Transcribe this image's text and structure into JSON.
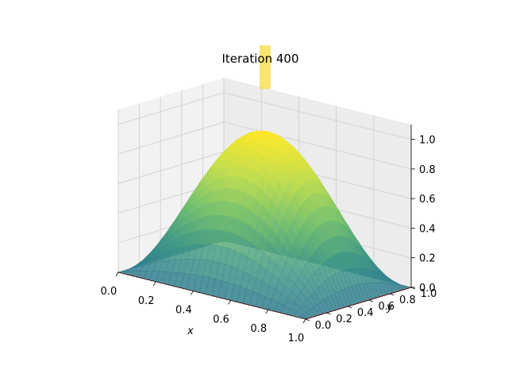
{
  "chart_data": {
    "type": "surface3d",
    "title": "Iteration 400",
    "xlabel": "x",
    "ylabel": "y",
    "zlabel": "",
    "xlim": [
      0,
      1
    ],
    "ylim": [
      0,
      1
    ],
    "zlim": [
      0,
      1.1
    ],
    "x_ticks": [
      0.0,
      0.2,
      0.4,
      0.6,
      0.8,
      1.0
    ],
    "x_tick_labels": [
      "0.0",
      "0.2",
      "0.4",
      "0.6",
      "0.8",
      "1.0"
    ],
    "y_ticks": [
      0.0,
      0.2,
      0.4,
      0.6,
      0.8,
      1.0
    ],
    "y_tick_labels": [
      "0.0",
      "0.2",
      "0.4",
      "0.6",
      "0.8",
      "1.0"
    ],
    "z_ticks": [
      0.0,
      0.2,
      0.4,
      0.6,
      0.8,
      1.0
    ],
    "z_tick_labels": [
      "0.0",
      "0.2",
      "0.4",
      "0.6",
      "0.8",
      "1.0"
    ],
    "grid": true,
    "colormap": [
      "#2a788e",
      "#3f9a83",
      "#7ac46a",
      "#c5df4a",
      "#fde725"
    ],
    "boundary_marker_color": "#f08080",
    "pane_color": "#f2f2f2",
    "grid_color": "#cccccc",
    "surface_peak": 1.0,
    "surface_peak_location": [
      0.5,
      0.5
    ],
    "surface_boundary_value": 0.0
  }
}
